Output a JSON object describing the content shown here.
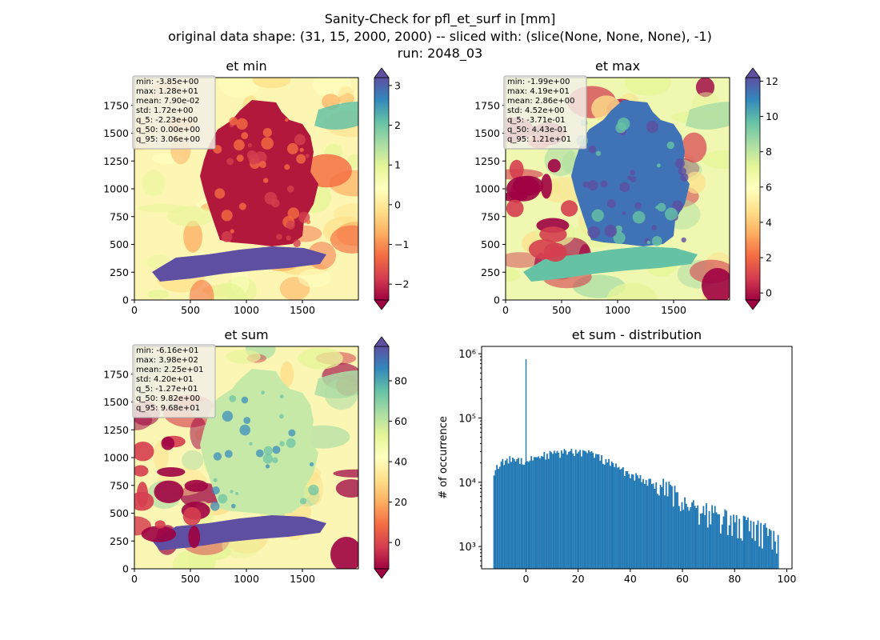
{
  "suptitle": [
    "Sanity-Check for pfl_et_surf in [mm]",
    "original data shape: (31, 15, 2000, 2000) -- sliced with: (slice(None, None, None), -1)",
    "run: 2048_03"
  ],
  "colors": {
    "hist_bar": "#1f77b4",
    "colormap": [
      "#9e0142",
      "#d53e4f",
      "#f46d43",
      "#fdae61",
      "#fee08b",
      "#ffffbf",
      "#e6f598",
      "#abdda4",
      "#66c2a5",
      "#3288bd",
      "#5e4fa2"
    ]
  },
  "chart_data": [
    {
      "type": "heatmap",
      "title": "et min",
      "colormap": "Spectral",
      "x_ticks": [
        "0",
        "500",
        "1000",
        "1500"
      ],
      "y_ticks": [
        "0",
        "250",
        "500",
        "750",
        "1000",
        "1250",
        "1500",
        "1750"
      ],
      "xlim": [
        0,
        2000
      ],
      "ylim": [
        0,
        2000
      ],
      "colorbar": {
        "ticks": [
          "−2",
          "−1",
          "0",
          "1",
          "2",
          "3"
        ],
        "tick_values": [
          -2,
          -1,
          0,
          1,
          2,
          3
        ],
        "range": [
          -2.4,
          3.2
        ],
        "extend": "both"
      },
      "stats": [
        "min: -3.85e+00",
        "max: 1.28e+01",
        "mean: 7.90e-02",
        "std: 1.72e+00",
        "q_5: -2.23e+00",
        "q_50: 0.00e+00",
        "q_95: 3.06e+00"
      ]
    },
    {
      "type": "heatmap",
      "title": "et max",
      "colormap": "Spectral",
      "x_ticks": [
        "0",
        "500",
        "1000",
        "1500"
      ],
      "y_ticks": [
        "0",
        "250",
        "500",
        "750",
        "1000",
        "1250",
        "1500",
        "1750"
      ],
      "xlim": [
        0,
        2000
      ],
      "ylim": [
        0,
        2000
      ],
      "colorbar": {
        "ticks": [
          "0",
          "2",
          "4",
          "6",
          "8",
          "10",
          "12"
        ],
        "tick_values": [
          0,
          2,
          4,
          6,
          8,
          10,
          12
        ],
        "range": [
          -0.4,
          12.2
        ],
        "extend": "both"
      },
      "stats": [
        "min: -1.99e+00",
        "max: 4.19e+01",
        "mean: 2.86e+00",
        "std: 4.52e+00",
        "q_5: -3.71e-01",
        "q_50: 4.43e-01",
        "q_95: 1.21e+01"
      ]
    },
    {
      "type": "heatmap",
      "title": "et sum",
      "colormap": "Spectral",
      "x_ticks": [
        "0",
        "500",
        "1000",
        "1500"
      ],
      "y_ticks": [
        "0",
        "250",
        "500",
        "750",
        "1000",
        "1250",
        "1500",
        "1750"
      ],
      "xlim": [
        0,
        2000
      ],
      "ylim": [
        0,
        2000
      ],
      "colorbar": {
        "ticks": [
          "0",
          "20",
          "40",
          "60",
          "80"
        ],
        "tick_values": [
          0,
          20,
          40,
          60,
          80
        ],
        "range": [
          -13,
          97
        ],
        "extend": "both"
      },
      "stats": [
        "min: -6.16e+01",
        "max: 3.98e+02",
        "mean: 2.25e+01",
        "std: 4.20e+01",
        "q_5: -1.27e+01",
        "q_50: 9.82e+00",
        "q_95: 9.68e+01"
      ]
    },
    {
      "type": "bar",
      "title": "et sum - distribution",
      "ylabel": "# of occurrence",
      "xlabel": "",
      "yscale": "log",
      "x_ticks": [
        "0",
        "20",
        "40",
        "60",
        "80",
        "100"
      ],
      "x_tick_values": [
        0,
        20,
        40,
        60,
        80,
        100
      ],
      "xlim": [
        -17,
        102
      ],
      "y_ticks": [
        "10³",
        "10⁴",
        "10⁵",
        "10⁶"
      ],
      "y_tick_values": [
        1000,
        10000,
        100000,
        1000000
      ],
      "ylim": [
        450,
        1300000
      ],
      "spike": {
        "x": 0,
        "y": 820000
      },
      "x": [
        -12.5,
        -10,
        -5,
        0,
        5,
        10,
        15,
        20,
        25,
        30,
        35,
        40,
        45,
        50,
        55,
        60,
        65,
        70,
        75,
        80,
        85,
        90,
        95,
        96.8
      ],
      "y": [
        14500,
        19000,
        24000,
        21000,
        26000,
        27000,
        29000,
        30000,
        28000,
        22000,
        17000,
        13000,
        11000,
        9000,
        7000,
        5300,
        4200,
        3400,
        2800,
        2300,
        2000,
        1700,
        1400,
        1100
      ]
    }
  ]
}
